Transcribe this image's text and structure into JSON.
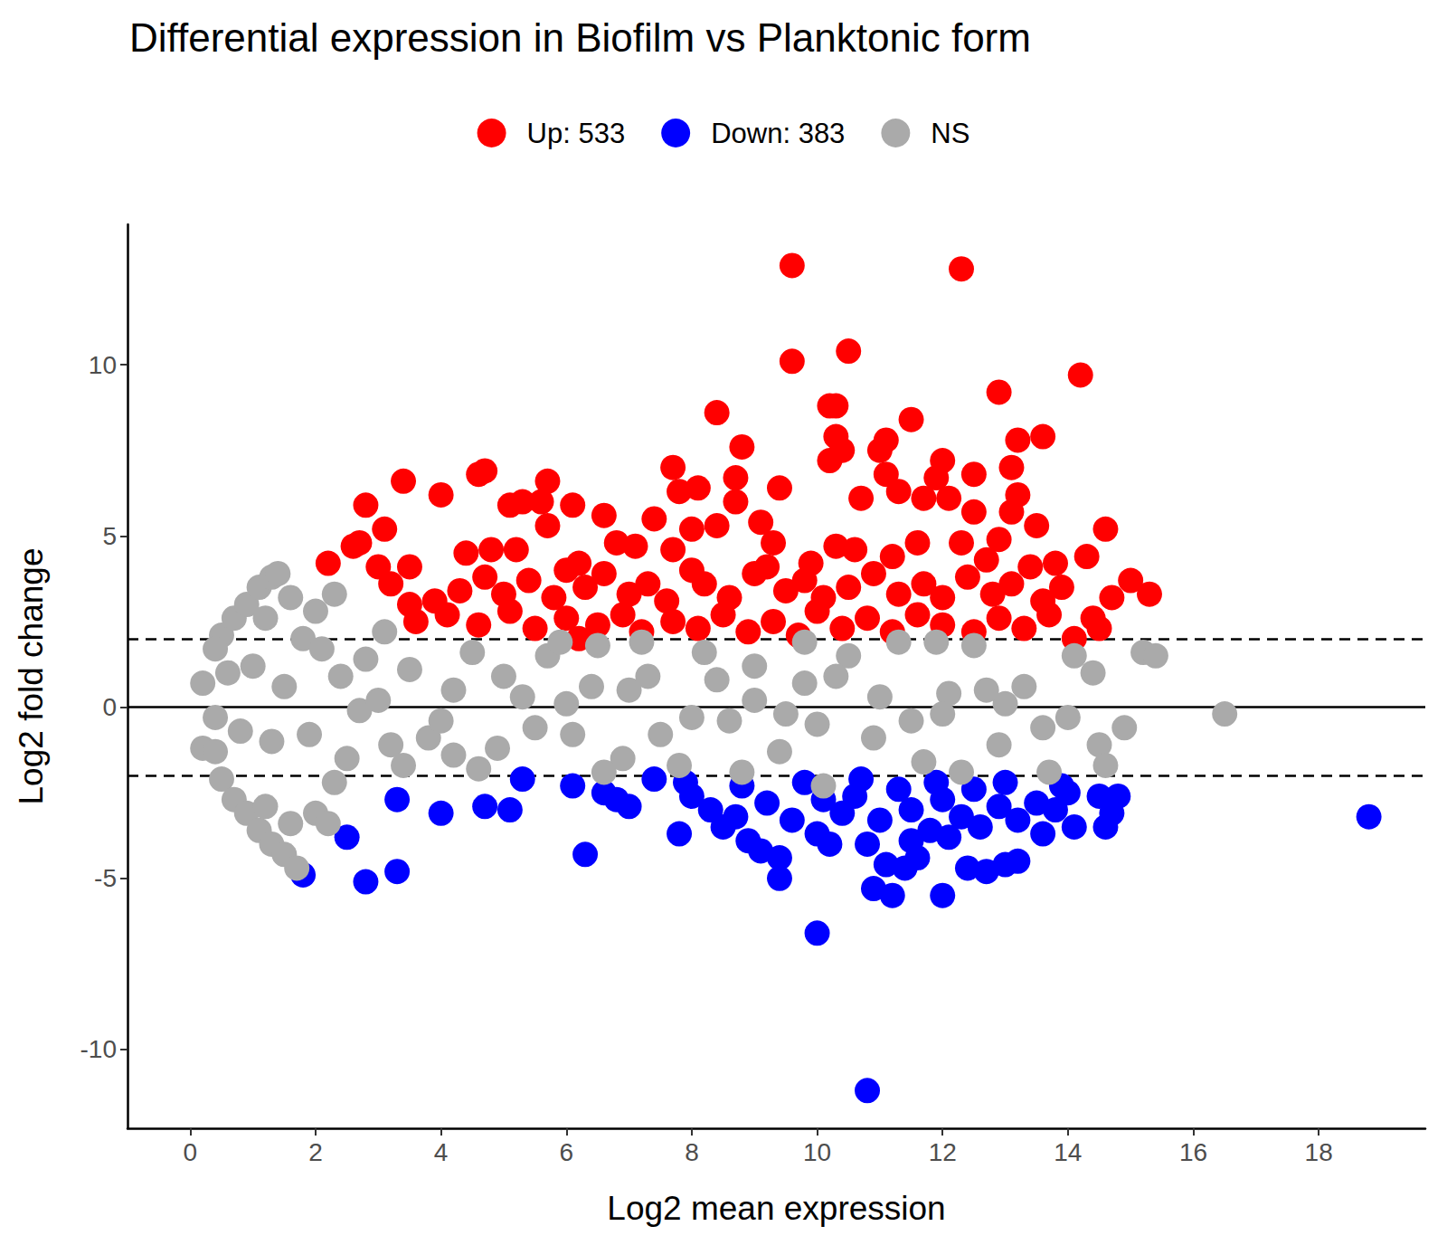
{
  "chart_data": {
    "type": "scatter",
    "title": "Differential expression in Biofilm vs Planktonic form",
    "x_label": "Log2 mean expression",
    "y_label": "Log2 fold change",
    "xlim": [
      -1,
      19.7
    ],
    "ylim": [
      -12.3,
      14.1
    ],
    "xticks": [
      0,
      2,
      4,
      6,
      8,
      10,
      12,
      14,
      16,
      18
    ],
    "yticks": [
      -10,
      -5,
      0,
      5,
      10
    ],
    "grid": false,
    "legend": "top",
    "marker": "circle",
    "hlines": [
      {
        "y": 2,
        "line_style": "dashed"
      },
      {
        "y": -2,
        "line_style": "dashed"
      },
      {
        "y": 0,
        "line_style": "solid"
      }
    ],
    "series": [
      {
        "name": "Up: 533",
        "color": "#ff0000",
        "x": [
          9.6,
          12.3,
          9.6,
          10.5,
          14.2,
          12.9,
          10.2,
          10.3,
          8.4,
          11.5,
          13.2,
          13.6,
          11.1,
          10.3,
          10.4,
          10.2,
          8.8,
          11,
          12,
          13.1,
          7.7,
          7.8,
          8.1,
          8.7,
          9.4,
          11.1,
          11.9,
          12.5,
          13.2,
          3.4,
          4,
          4.6,
          4.7,
          5.7,
          2.8,
          3.1,
          5.1,
          5.3,
          5.6,
          6.1,
          6.6,
          7.4,
          8.7,
          9.1,
          10.7,
          11.3,
          11.7,
          12.1,
          12.5,
          13.1,
          13.5,
          14.6,
          2.2,
          2.6,
          2.7,
          3,
          3.5,
          4.4,
          4.8,
          5.2,
          5.7,
          6.2,
          6.8,
          7.1,
          7.7,
          8,
          8.4,
          9.3,
          9.9,
          10.3,
          10.6,
          11.2,
          11.6,
          12.3,
          12.9,
          13.4,
          13.8,
          14.3,
          15,
          15.3,
          14.7,
          14.4,
          14.5,
          14.1,
          3.2,
          3.5,
          3.9,
          4.3,
          4.7,
          5,
          5.4,
          5.8,
          6.3,
          6.6,
          7,
          7.3,
          7.6,
          8.2,
          8.6,
          9,
          9.5,
          9.8,
          10.1,
          10.5,
          10.9,
          11.3,
          11.7,
          12,
          12.4,
          12.8,
          13.1,
          13.6,
          13.9,
          3.6,
          4.1,
          4.6,
          5.1,
          5.5,
          6,
          6.2,
          6.5,
          6.9,
          7.2,
          7.7,
          8.1,
          8.5,
          8.9,
          9.3,
          9.7,
          10,
          10.4,
          10.8,
          11.2,
          11.6,
          12,
          12.5,
          12.9,
          13.3,
          13.7,
          9.2,
          8,
          6,
          12.7
        ],
        "values": [
          12.9,
          12.8,
          10.1,
          10.4,
          9.7,
          9.2,
          8.8,
          8.8,
          8.6,
          8.4,
          7.8,
          7.9,
          7.8,
          7.9,
          7.5,
          7.2,
          7.6,
          7.5,
          7.2,
          7,
          7,
          6.3,
          6.4,
          6.7,
          6.4,
          6.8,
          6.7,
          6.8,
          6.2,
          6.6,
          6.2,
          6.8,
          6.9,
          6.6,
          5.9,
          5.2,
          5.9,
          6,
          6,
          5.9,
          5.6,
          5.5,
          6,
          5.4,
          6.1,
          6.3,
          6.1,
          6.1,
          5.7,
          5.7,
          5.3,
          5.2,
          4.2,
          4.7,
          4.8,
          4.1,
          4.1,
          4.5,
          4.6,
          4.6,
          5.3,
          4.2,
          4.8,
          4.7,
          4.6,
          5.2,
          5.3,
          4.8,
          4.2,
          4.7,
          4.6,
          4.4,
          4.8,
          4.8,
          4.9,
          4.1,
          4.2,
          4.4,
          3.7,
          3.3,
          3.2,
          2.6,
          2.3,
          2,
          3.6,
          3,
          3.1,
          3.4,
          3.8,
          3.3,
          3.7,
          3.2,
          3.5,
          3.9,
          3.3,
          3.6,
          3.1,
          3.6,
          3.2,
          3.9,
          3.4,
          3.7,
          3.2,
          3.5,
          3.9,
          3.3,
          3.6,
          3.2,
          3.8,
          3.3,
          3.6,
          3.1,
          3.5,
          2.5,
          2.7,
          2.4,
          2.8,
          2.3,
          2.6,
          2,
          2.4,
          2.7,
          2.2,
          2.5,
          2.3,
          2.7,
          2.2,
          2.5,
          2.1,
          2.8,
          2.3,
          2.6,
          2.2,
          2.7,
          2.4,
          2.2,
          2.6,
          2.3,
          2.7,
          4.1,
          4,
          4,
          4.3
        ]
      },
      {
        "name": "Down: 383",
        "color": "#0000ff",
        "x": [
          18.8,
          10.8,
          10,
          1.8,
          2.8,
          3.3,
          2.5,
          3.3,
          4,
          4.7,
          5.1,
          5.3,
          6.3,
          6.1,
          6.8,
          7,
          7.8,
          8.5,
          8.9,
          9.1,
          9.4,
          9.4,
          10,
          10.2,
          10.8,
          10.9,
          11.2,
          11.1,
          11.4,
          11.6,
          12,
          12.4,
          12.7,
          13,
          13.2,
          13.6,
          14.1,
          14.5,
          14.8,
          14.6,
          14.7,
          8,
          8.3,
          8.7,
          9.6,
          10.4,
          10.6,
          11,
          11.5,
          11.8,
          12.1,
          12.3,
          12.6,
          12.9,
          13.2,
          13.5,
          13.8,
          14,
          7.4,
          7.9,
          8.8,
          9.8,
          10.7,
          11.3,
          11.9,
          12.5,
          13,
          13.9,
          6.6,
          9.2,
          10.1,
          12,
          11.5
        ],
        "values": [
          -3.2,
          -11.2,
          -6.6,
          -4.9,
          -5.1,
          -4.8,
          -3.8,
          -2.7,
          -3.1,
          -2.9,
          -3,
          -2.1,
          -4.3,
          -2.3,
          -2.7,
          -2.9,
          -3.7,
          -3.5,
          -3.9,
          -4.2,
          -4.4,
          -5,
          -3.7,
          -4,
          -4,
          -5.3,
          -5.5,
          -4.6,
          -4.7,
          -4.4,
          -5.5,
          -4.7,
          -4.8,
          -4.6,
          -4.5,
          -3.7,
          -3.5,
          -2.6,
          -2.6,
          -3.5,
          -3.1,
          -2.6,
          -3,
          -3.2,
          -3.3,
          -3.1,
          -2.6,
          -3.3,
          -3,
          -3.6,
          -3.8,
          -3.2,
          -3.5,
          -2.9,
          -3.3,
          -2.8,
          -3,
          -2.5,
          -2.1,
          -2.2,
          -2.3,
          -2.2,
          -2.1,
          -2.4,
          -2.2,
          -2.4,
          -2.2,
          -2.3,
          -2.5,
          -2.8,
          -2.7,
          -2.7,
          -3.9
        ]
      },
      {
        "name": "NS",
        "color": "#aaaaaa",
        "x": [
          0.2,
          0.4,
          0.2,
          0.5,
          0.4,
          0.7,
          0.9,
          1.1,
          1.3,
          1.4,
          0.6,
          0.8,
          0.5,
          0.7,
          0.9,
          1.1,
          1.3,
          1.5,
          1.7,
          1.6,
          1.2,
          2,
          2.2,
          1.6,
          2,
          2.3,
          1.2,
          1.8,
          2.1,
          1,
          1.5,
          2.4,
          2.8,
          3.1,
          1.9,
          2.5,
          2.7,
          3.2,
          3.4,
          3.8,
          4.2,
          4.5,
          4.9,
          5.3,
          5.7,
          6.1,
          6.5,
          6.9,
          7.3,
          7.8,
          8.2,
          8.6,
          9,
          9.4,
          9.8,
          10.1,
          10.5,
          10.9,
          11.3,
          11.7,
          12.1,
          12.5,
          12.9,
          13.3,
          13.7,
          14.1,
          14.4,
          14.5,
          14.6,
          14.9,
          15.2,
          15.4,
          16.5,
          3,
          4,
          5,
          6,
          7,
          8,
          9,
          10,
          11,
          12,
          13,
          14,
          3.5,
          4.6,
          5.5,
          6.4,
          7.5,
          8.4,
          9.5,
          10.3,
          11.5,
          12.7,
          13.6,
          5.9,
          7.2,
          9.8,
          11.9,
          12.3,
          8.8,
          6.6,
          4.2,
          2.3,
          0.4,
          1.3
        ],
        "values": [
          0.7,
          -0.3,
          -1.2,
          2.1,
          1.7,
          2.6,
          3,
          3.5,
          3.8,
          3.9,
          1,
          -0.7,
          -2.1,
          -2.7,
          -3.1,
          -3.6,
          -4,
          -4.3,
          -4.7,
          -3.4,
          -2.9,
          -3.1,
          -3.4,
          3.2,
          2.8,
          3.3,
          2.6,
          2,
          1.7,
          1.2,
          0.6,
          0.9,
          1.4,
          2.2,
          -0.8,
          -1.5,
          -0.1,
          -1.1,
          -1.7,
          -0.9,
          0.5,
          1.6,
          -1.2,
          0.3,
          1.5,
          -0.8,
          1.8,
          -1.5,
          0.9,
          -1.7,
          1.6,
          -0.4,
          1.2,
          -1.3,
          0.7,
          -2.3,
          1.5,
          -0.9,
          1.9,
          -1.6,
          0.4,
          1.8,
          -1.1,
          0.6,
          -1.9,
          1.5,
          1,
          -1.1,
          -1.7,
          -0.6,
          1.6,
          1.5,
          -0.2,
          0.2,
          -0.4,
          0.9,
          0.1,
          0.5,
          -0.3,
          0.2,
          -0.5,
          0.3,
          -0.2,
          0.1,
          -0.3,
          1.1,
          -1.8,
          -0.6,
          0.6,
          -0.8,
          0.8,
          -0.2,
          0.9,
          -0.4,
          0.5,
          -0.6,
          1.9,
          1.9,
          1.9,
          1.9,
          -1.9,
          -1.9,
          -1.9,
          -1.4,
          -2.2,
          -1.3,
          -1
        ]
      }
    ]
  }
}
